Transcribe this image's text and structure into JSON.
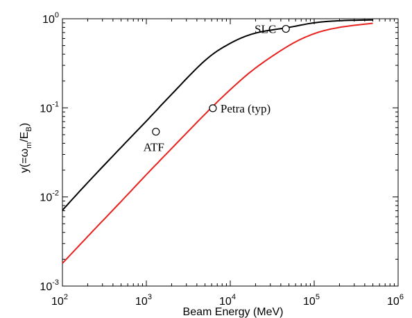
{
  "chart_data": {
    "type": "line",
    "xlabel": "Beam Energy (MeV)",
    "ylabel": {
      "main": "y(=ω",
      "sub1": "m",
      "mid": "/E",
      "sub2": "B",
      "end": ")"
    },
    "xscale": "log",
    "yscale": "log",
    "xlim": [
      100,
      1000000
    ],
    "ylim": [
      0.001,
      1
    ],
    "grid": false,
    "xticks": [
      {
        "value": 100,
        "base": "10",
        "exp": "2"
      },
      {
        "value": 1000,
        "base": "10",
        "exp": "3"
      },
      {
        "value": 10000,
        "base": "10",
        "exp": "4"
      },
      {
        "value": 100000,
        "base": "10",
        "exp": "5"
      },
      {
        "value": 1000000,
        "base": "10",
        "exp": "6"
      }
    ],
    "yticks": [
      {
        "value": 0.001,
        "base": "10",
        "exp": "-3"
      },
      {
        "value": 0.01,
        "base": "10",
        "exp": "-2"
      },
      {
        "value": 0.1,
        "base": "10",
        "exp": "-1"
      },
      {
        "value": 1,
        "base": "10",
        "exp": "0"
      }
    ],
    "series": [
      {
        "color": "#000000",
        "x": [
          100,
          200,
          500,
          1000,
          2000,
          5000,
          10000,
          20000,
          50000,
          100000,
          200000,
          500000
        ],
        "y": [
          0.0071,
          0.0145,
          0.036,
          0.071,
          0.142,
          0.34,
          0.53,
          0.69,
          0.8,
          0.9,
          0.95,
          0.97
        ]
      },
      {
        "color": "#e8211f",
        "x": [
          100,
          200,
          500,
          1000,
          2000,
          5000,
          10000,
          20000,
          50000,
          100000,
          200000,
          500000
        ],
        "y": [
          0.0018,
          0.0036,
          0.0089,
          0.0178,
          0.035,
          0.085,
          0.16,
          0.28,
          0.5,
          0.68,
          0.8,
          0.89
        ]
      }
    ],
    "points": [
      {
        "label": "SLC",
        "x": 46000,
        "y": 0.77
      },
      {
        "label": "Petra (typ)",
        "x": 6200,
        "y": 0.099
      },
      {
        "label": "ATF",
        "x": 1300,
        "y": 0.054
      }
    ]
  }
}
